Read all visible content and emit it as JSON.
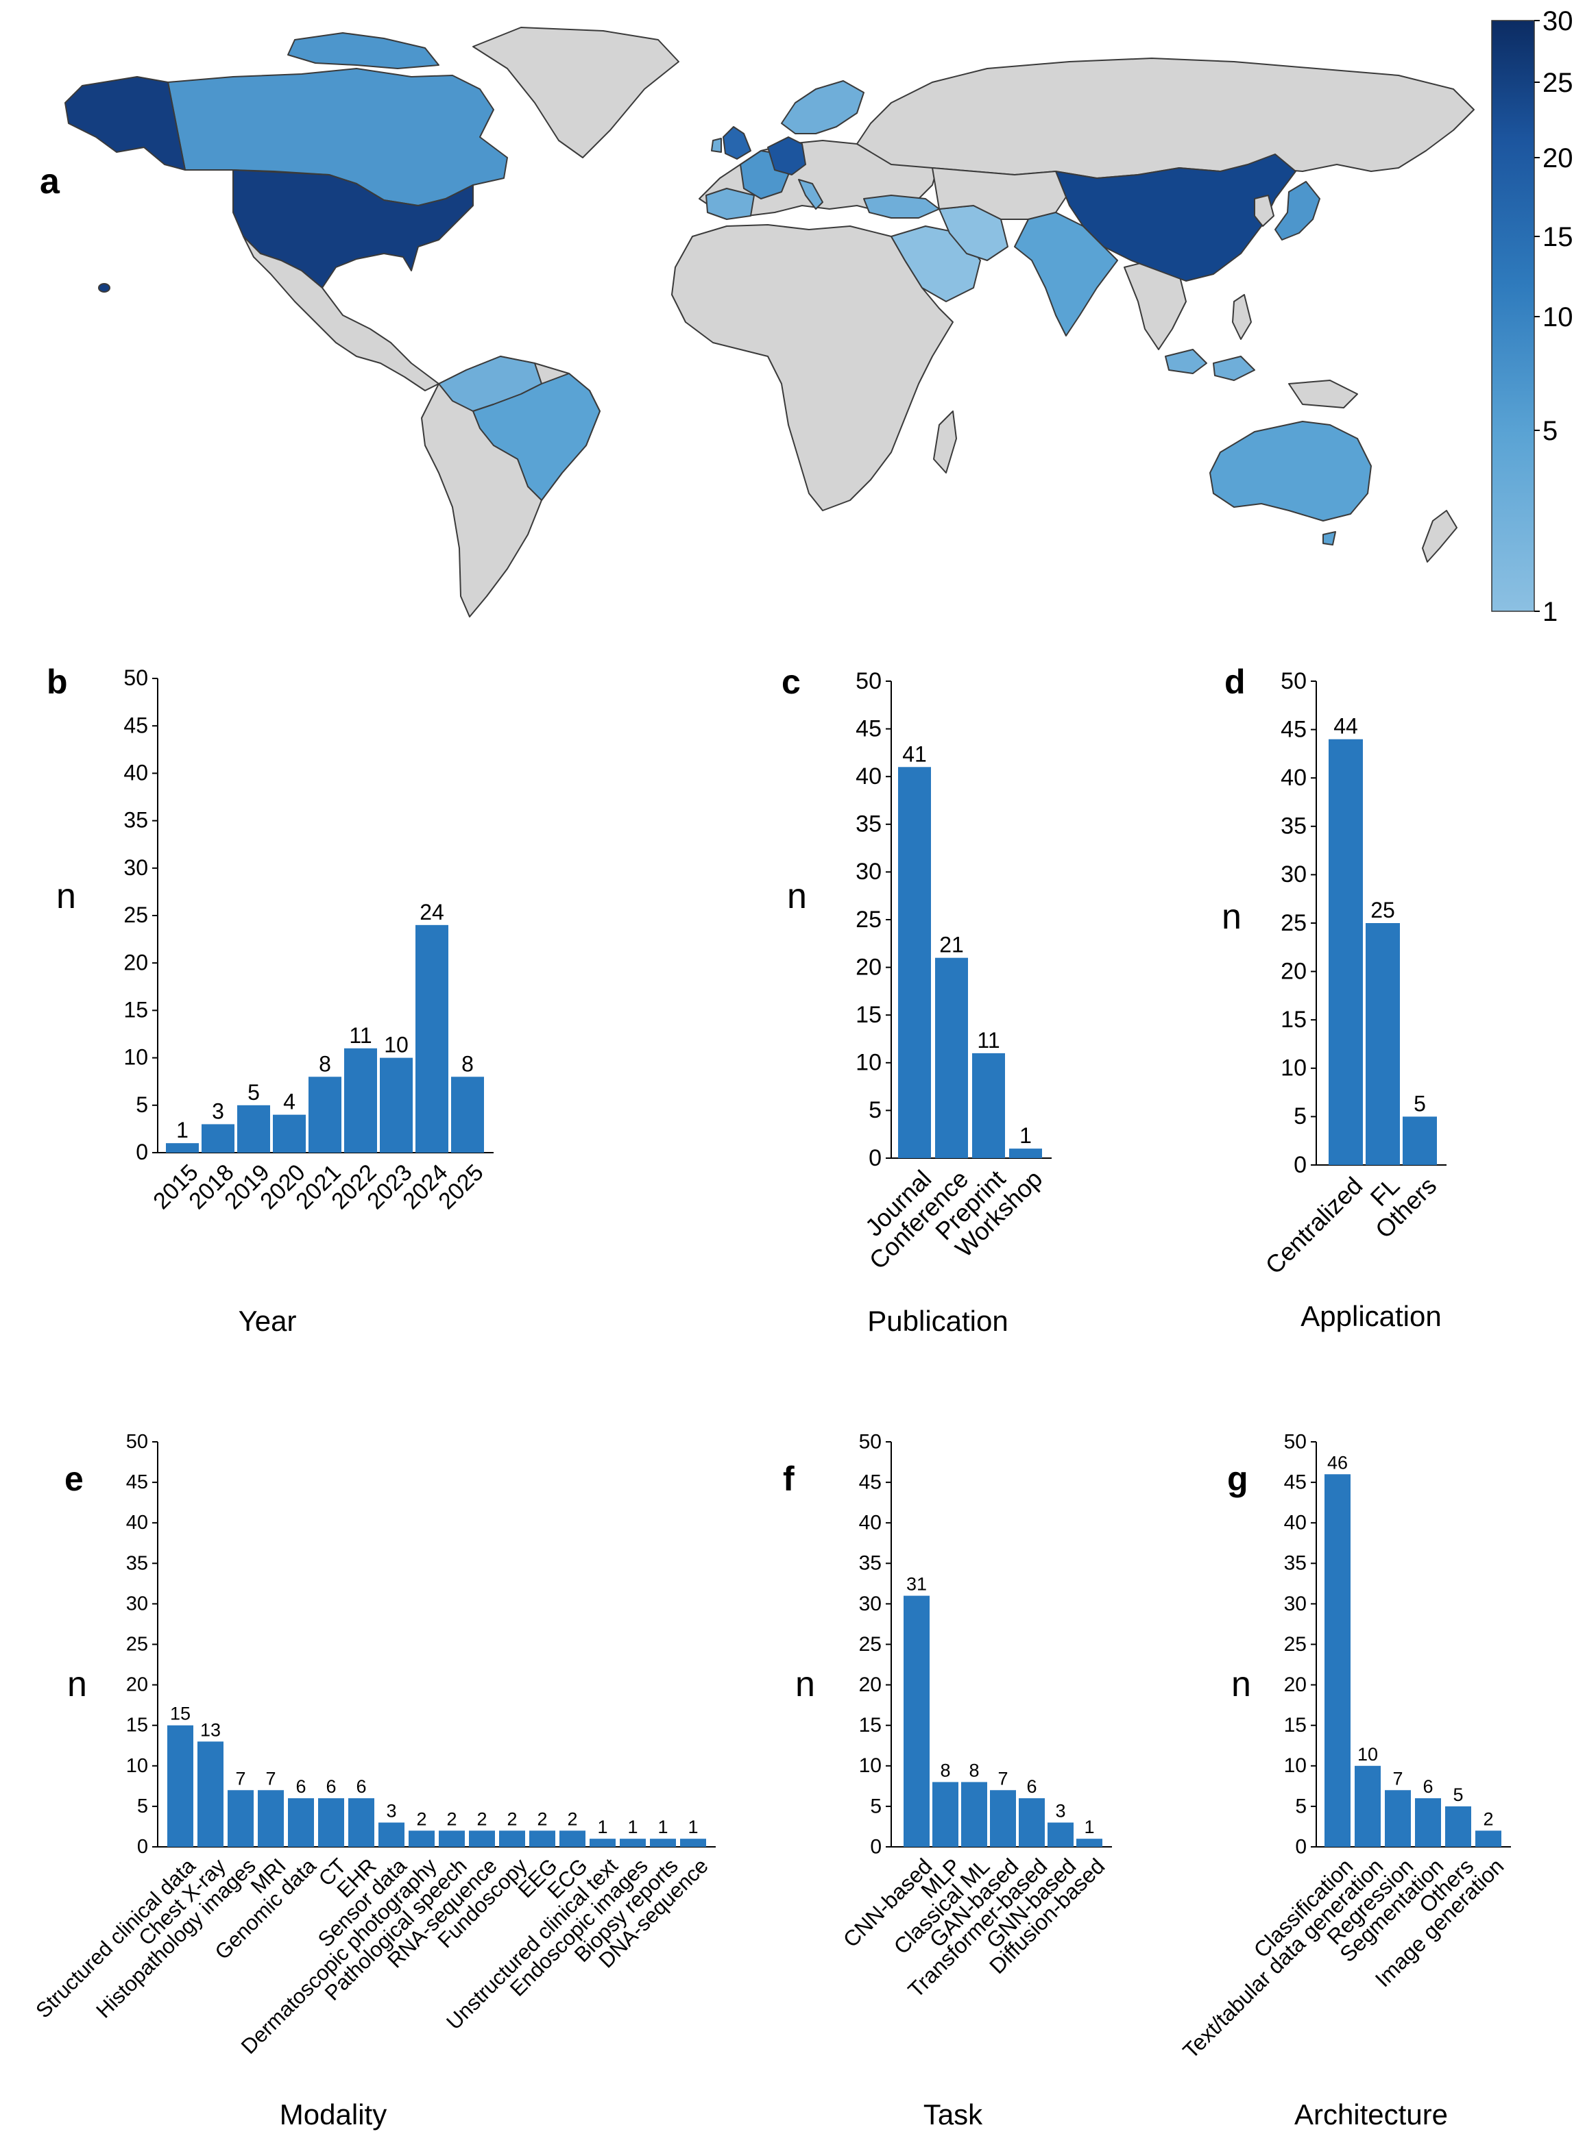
{
  "colors": {
    "bar": "#2878be",
    "axis": "#000000",
    "land_nodata": "#d4d4d4",
    "land_stroke": "#3a3a3a",
    "scale_low": "#8cc0e2",
    "scale_high": "#0c2c63"
  },
  "chart_data": [
    {
      "id": "a",
      "panel_label": "a",
      "type": "choropleth",
      "title": "",
      "colorbar": {
        "range": [
          1,
          30
        ],
        "ticks": [
          "1",
          "5",
          "10",
          "15",
          "20",
          "25",
          "30"
        ]
      },
      "regions": [
        {
          "name": "United States",
          "value": 28
        },
        {
          "name": "Alaska",
          "value": 28
        },
        {
          "name": "Canada",
          "value": 9
        },
        {
          "name": "China",
          "value": 25
        },
        {
          "name": "Germany",
          "value": 18
        },
        {
          "name": "United Kingdom",
          "value": 16
        },
        {
          "name": "Japan",
          "value": 9
        },
        {
          "name": "Brazil",
          "value": 4
        },
        {
          "name": "Australia",
          "value": 6
        },
        {
          "name": "India",
          "value": 3
        },
        {
          "name": "Saudi Arabia",
          "value": 2
        },
        {
          "name": "Norway/Sweden/Finland",
          "value": 3
        },
        {
          "name": "France",
          "value": 8
        },
        {
          "name": "Spain",
          "value": 5
        },
        {
          "name": "Colombia/Venezuela",
          "value": 3
        },
        {
          "name": "Iran",
          "value": 2
        },
        {
          "name": "Turkey",
          "value": 3
        },
        {
          "name": "Indonesia",
          "value": 3
        }
      ]
    },
    {
      "id": "b",
      "panel_label": "b",
      "type": "bar",
      "xlabel": "Year",
      "ylabel": "n",
      "ylim": [
        0,
        50
      ],
      "yticks": [
        "0",
        "5",
        "10",
        "15",
        "20",
        "25",
        "30",
        "35",
        "40",
        "45",
        "50"
      ],
      "categories": [
        "2015",
        "2018",
        "2019",
        "2020",
        "2021",
        "2022",
        "2023",
        "2024",
        "2025"
      ],
      "values": [
        1,
        3,
        5,
        4,
        8,
        11,
        10,
        24,
        8
      ],
      "labels": [
        "1",
        "3",
        "5",
        "4",
        "8",
        "11",
        "10",
        "24",
        "8"
      ]
    },
    {
      "id": "c",
      "panel_label": "c",
      "type": "bar",
      "xlabel": "Publication",
      "ylabel": "n",
      "ylim": [
        0,
        50
      ],
      "yticks": [
        "0",
        "5",
        "10",
        "15",
        "20",
        "25",
        "30",
        "35",
        "40",
        "45",
        "50"
      ],
      "categories": [
        "Journal",
        "Conference",
        "Preprint",
        "Workshop"
      ],
      "values": [
        41,
        21,
        11,
        1
      ],
      "labels": [
        "41",
        "21",
        "11",
        "1"
      ]
    },
    {
      "id": "d",
      "panel_label": "d",
      "type": "bar",
      "xlabel": "Application",
      "ylabel": "n",
      "ylim": [
        0,
        50
      ],
      "yticks": [
        "0",
        "5",
        "10",
        "15",
        "20",
        "25",
        "30",
        "35",
        "40",
        "45",
        "50"
      ],
      "categories": [
        "Centralized",
        "FL",
        "Others"
      ],
      "values": [
        44,
        25,
        5
      ],
      "labels": [
        "44",
        "25",
        "5"
      ]
    },
    {
      "id": "e",
      "panel_label": "e",
      "type": "bar",
      "xlabel": "Modality",
      "ylabel": "n",
      "ylim": [
        0,
        50
      ],
      "yticks": [
        "0",
        "5",
        "10",
        "15",
        "20",
        "25",
        "30",
        "35",
        "40",
        "45",
        "50"
      ],
      "categories": [
        "Structured clinical data",
        "Chest X-ray",
        "Histopathology images",
        "MRI",
        "Genomic data",
        "CT",
        "EHR",
        "Sensor data",
        "Dermatoscopic photography",
        "Pathological speech",
        "RNA-sequence",
        "Fundoscopy",
        "EEG",
        "ECG",
        "Unstructured clinical text",
        "Endoscopic images",
        "Biopsy reports",
        "DNA-sequence"
      ],
      "values": [
        15,
        13,
        7,
        7,
        6,
        6,
        6,
        3,
        2,
        2,
        2,
        2,
        2,
        2,
        1,
        1,
        1,
        1
      ],
      "labels": [
        "15",
        "13",
        "7",
        "7",
        "6",
        "6",
        "6",
        "3",
        "2",
        "2",
        "2",
        "2",
        "2",
        "2",
        "1",
        "1",
        "1",
        "1"
      ]
    },
    {
      "id": "f",
      "panel_label": "f",
      "type": "bar",
      "xlabel": "Task",
      "ylabel": "n",
      "ylim": [
        0,
        50
      ],
      "yticks": [
        "0",
        "5",
        "10",
        "15",
        "20",
        "25",
        "30",
        "35",
        "40",
        "45",
        "50"
      ],
      "categories": [
        "CNN-based",
        "MLP",
        "Classical ML",
        "GAN-based",
        "Transformer-based",
        "GNN-based",
        "Diffusion-based"
      ],
      "values": [
        31,
        8,
        8,
        7,
        6,
        3,
        1
      ],
      "labels": [
        "31",
        "8",
        "8",
        "7",
        "6",
        "3",
        "1"
      ]
    },
    {
      "id": "g",
      "panel_label": "g",
      "type": "bar",
      "xlabel": "Architecture",
      "ylabel": "n",
      "ylim": [
        0,
        50
      ],
      "yticks": [
        "0",
        "5",
        "10",
        "15",
        "20",
        "25",
        "30",
        "35",
        "40",
        "45",
        "50"
      ],
      "categories": [
        "Classification",
        "Text/tabular data generation",
        "Regression",
        "Segmentation",
        "Others",
        "Image generation"
      ],
      "values": [
        46,
        10,
        7,
        6,
        5,
        2
      ],
      "labels": [
        "46",
        "10",
        "7",
        "6",
        "5",
        "2"
      ]
    }
  ]
}
